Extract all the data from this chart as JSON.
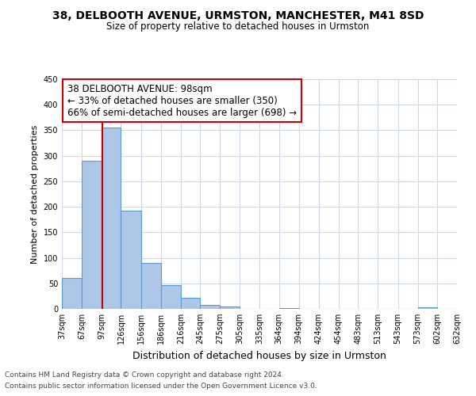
{
  "title": "38, DELBOOTH AVENUE, URMSTON, MANCHESTER, M41 8SD",
  "subtitle": "Size of property relative to detached houses in Urmston",
  "xlabel": "Distribution of detached houses by size in Urmston",
  "ylabel": "Number of detached properties",
  "bar_edges": [
    37,
    67,
    97,
    126,
    156,
    186,
    216,
    245,
    275,
    305,
    335,
    364,
    394,
    424,
    454,
    483,
    513,
    543,
    573,
    602,
    632
  ],
  "bar_heights": [
    60,
    290,
    355,
    192,
    90,
    47,
    21,
    8,
    5,
    0,
    0,
    2,
    0,
    0,
    0,
    0,
    0,
    0,
    3,
    0,
    3
  ],
  "bar_color": "#aec6e8",
  "bar_edge_color": "#5b9bd5",
  "bar_edge_width": 0.8,
  "red_line_x": 98,
  "annotation_title": "38 DELBOOTH AVENUE: 98sqm",
  "annotation_line1": "← 33% of detached houses are smaller (350)",
  "annotation_line2": "66% of semi-detached houses are larger (698) →",
  "annotation_box_color": "#ffffff",
  "annotation_box_edge": "#cc0000",
  "red_line_color": "#cc0000",
  "ylim": [
    0,
    450
  ],
  "yticks": [
    0,
    50,
    100,
    150,
    200,
    250,
    300,
    350,
    400,
    450
  ],
  "footer1": "Contains HM Land Registry data © Crown copyright and database right 2024.",
  "footer2": "Contains public sector information licensed under the Open Government Licence v3.0.",
  "bg_color": "#ffffff",
  "grid_color": "#d0d8e8",
  "title_fontsize": 10,
  "subtitle_fontsize": 8.5,
  "ylabel_fontsize": 8,
  "xlabel_fontsize": 9,
  "tick_fontsize": 7,
  "annotation_fontsize": 8.5,
  "footer_fontsize": 6.5
}
